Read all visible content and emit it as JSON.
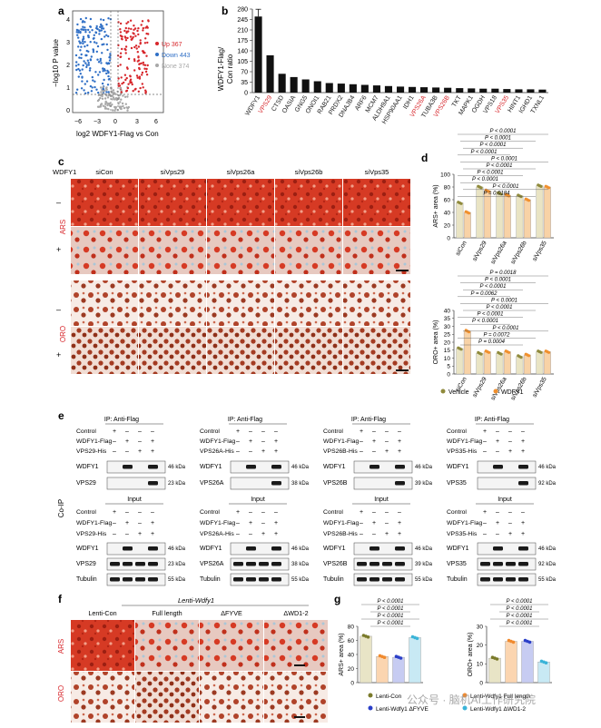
{
  "colors": {
    "up": "#d7262b",
    "down": "#2f6fc6",
    "none": "#a8a8a8",
    "vehicle": "#8f8a3c",
    "wdfy1": "#f0902e",
    "lenti_con": "#7a7a2a",
    "full_length": "#f08a2e",
    "dfyve": "#2a3fc8",
    "dwd12": "#3bb4d8",
    "ars_stain": "#d9402a",
    "oro_stain": "#b8472f",
    "highlight": "#d7262b"
  },
  "panel_a": {
    "letter": "a",
    "ylabel": "−log10 P value",
    "xlabel": "log2 WDFY1-Flag vs Con",
    "xticks": [
      "−6",
      "−3",
      "0",
      "3",
      "6"
    ],
    "yticks": [
      "0",
      "1",
      "2",
      "3",
      "4"
    ],
    "legend": [
      {
        "label": "Up 367",
        "color": "#d7262b"
      },
      {
        "label": "Down 443",
        "color": "#2f6fc6"
      },
      {
        "label": "None 374",
        "color": "#a8a8a8"
      }
    ]
  },
  "panel_b": {
    "letter": "b",
    "ylabel_1": "WDFY1-Flag/",
    "ylabel_2": "Con ratio",
    "chart_data": {
      "type": "bar",
      "categories": [
        "WDFY1",
        "VPS29",
        "CTSD",
        "OASIA",
        "GNG5",
        "ONOI1",
        "RAB21",
        "PRDX2",
        "DNAJB4",
        "ARF6",
        "MCM7",
        "ALDH9A1",
        "HSP90AA1",
        "IDH1",
        "VPS26A",
        "TUBA3B",
        "VPS26B",
        "TKT",
        "MAPK1",
        "OGDH",
        "VPS18",
        "VPS35",
        "HINT1",
        "IGHD1",
        "TXNL1"
      ],
      "values": [
        255,
        125,
        63,
        52,
        44,
        38,
        32,
        30,
        28,
        26,
        24,
        22,
        20,
        19,
        18,
        17,
        16,
        15,
        14,
        13,
        13,
        12,
        11,
        11,
        10
      ],
      "highlighted": [
        "VPS29",
        "VPS26A",
        "VPS26B",
        "VPS35"
      ],
      "yticks": [
        0,
        35,
        70,
        105,
        140,
        175,
        210,
        245,
        280
      ],
      "ylim": [
        0,
        280
      ]
    }
  },
  "panel_c": {
    "letter": "c",
    "row_header": "WDFY1",
    "columns": [
      "siCon",
      "siVps29",
      "siVps26a",
      "siVps26b",
      "siVps35"
    ],
    "ars_label": "ARS",
    "oro_label": "ORO",
    "minus": "–",
    "plus": "+"
  },
  "panel_d": {
    "letter": "d",
    "legend": [
      {
        "label": "Vehicle",
        "color": "#8f8a3c"
      },
      {
        "label": "WDFY1",
        "color": "#f0902e"
      }
    ],
    "ars": {
      "ylabel": "ARS+ area (%)",
      "chart_data": {
        "type": "bar",
        "categories": [
          "siCon",
          "siVps29",
          "siVps26a",
          "siVps26b",
          "siVps35"
        ],
        "series": [
          {
            "name": "Vehicle",
            "values": [
              55,
              80,
              70,
              66,
              82
            ]
          },
          {
            "name": "WDFY1",
            "values": [
              40,
              74,
              67,
              60,
              80
            ]
          }
        ],
        "yticks": [
          0,
          20,
          40,
          60,
          80,
          100
        ],
        "ylim": [
          0,
          100
        ]
      },
      "pvalues": [
        "P < 0.0001",
        "P < 0.0001",
        "P < 0.0001",
        "P < 0.0001",
        "P < 0.0001",
        "P < 0.0001",
        "P < 0.0001",
        "P < 0.0001",
        "P < 0.0001",
        "P = 0.0184"
      ]
    },
    "oro": {
      "ylabel": "ORO+ area (%)",
      "chart_data": {
        "type": "bar",
        "categories": [
          "siCon",
          "siVps29",
          "siVps26a",
          "siVps26b",
          "siVps35"
        ],
        "series": [
          {
            "name": "Vehicle",
            "values": [
              16,
              13,
              13,
              11,
              14
            ]
          },
          {
            "name": "WDFY1",
            "values": [
              27,
              14,
              14,
              12,
              14
            ]
          }
        ],
        "yticks": [
          0,
          5,
          10,
          15,
          20,
          25,
          30,
          35,
          40
        ],
        "ylim": [
          0,
          40
        ]
      },
      "pvalues": [
        "P = 0.0018",
        "P < 0.0001",
        "P < 0.0001",
        "P = 0.0062",
        "P < 0.0001",
        "P < 0.0001",
        "P < 0.0001",
        "P < 0.0001",
        "P < 0.0001",
        "P = 0.0072",
        "P = 0.0004"
      ]
    }
  },
  "panel_e": {
    "letter": "e",
    "side_label": "Co-IP",
    "ip_title": "IP: Anti-Flag",
    "input_title": "Input",
    "control": "Control",
    "wdfy1_flag": "WDFY1-Flag",
    "tubulin": "Tubulin",
    "wdfy1": "WDFY1",
    "blots": [
      {
        "his": "VPS29-His",
        "target": "VPS29",
        "kda_wdfy1": "46 kDa",
        "kda_target": "23 kDa",
        "kda_tub": "55 kDa"
      },
      {
        "his": "VPS26A-His",
        "target": "VPS26A",
        "kda_wdfy1": "46 kDa",
        "kda_target": "38 kDa",
        "kda_tub": "55 kDa"
      },
      {
        "his": "VPS26B-His",
        "target": "VPS26B",
        "kda_wdfy1": "46 kDa",
        "kda_target": "39 kDa",
        "kda_tub": "55 kDa"
      },
      {
        "his": "VPS35-His",
        "target": "VPS35",
        "kda_wdfy1": "46 kDa",
        "kda_target": "92 kDa",
        "kda_tub": "55 kDa"
      }
    ],
    "signs": {
      "control": [
        "+",
        "–",
        "–",
        "–"
      ],
      "wdfy1": [
        "–",
        "+",
        "–",
        "+"
      ],
      "his": [
        "–",
        "–",
        "+",
        "+"
      ]
    }
  },
  "panel_f": {
    "letter": "f",
    "group_header": "Lenti-Wdfy1",
    "columns": [
      "Lenti-Con",
      "Full length",
      "ΔFYVE",
      "ΔWD1-2"
    ],
    "ars_label": "ARS",
    "oro_label": "ORO"
  },
  "panel_g": {
    "letter": "g",
    "ars": {
      "ylabel": "ARS+ area (%)",
      "chart_data": {
        "type": "bar",
        "categories": [
          "Lenti-Con",
          "Full length",
          "ΔFYVE",
          "ΔWD1-2"
        ],
        "values": [
          66,
          37,
          36,
          64
        ],
        "yticks": [
          0,
          20,
          40,
          60,
          80
        ],
        "ylim": [
          0,
          80
        ]
      },
      "pvalues": [
        "P < 0.0001",
        "P < 0.0001",
        "P < 0.0001",
        "P < 0.0001"
      ]
    },
    "oro": {
      "ylabel": "ORO+ area (%)",
      "chart_data": {
        "type": "bar",
        "categories": [
          "Lenti-Con",
          "Full length",
          "ΔFYVE",
          "ΔWD1-2"
        ],
        "values": [
          13,
          22,
          22,
          11
        ],
        "yticks": [
          0,
          10,
          20,
          30
        ],
        "ylim": [
          0,
          30
        ]
      },
      "pvalues": [
        "P < 0.0001",
        "P < 0.0001",
        "P < 0.0001",
        "P < 0.0001"
      ]
    },
    "legend": [
      {
        "label": "Lenti-Con",
        "color": "#7a7a2a"
      },
      {
        "label": "Lenti-Wdfy1 Full length",
        "color": "#f08a2e"
      },
      {
        "label": "Lenti-Wdfy1 ΔFYVE",
        "color": "#2a3fc8"
      },
      {
        "label": "Lenti-Wdfy1 ΔWD1-2",
        "color": "#3bb4d8"
      }
    ],
    "watermark": "公众号 · 脑机AI工作研究院"
  }
}
